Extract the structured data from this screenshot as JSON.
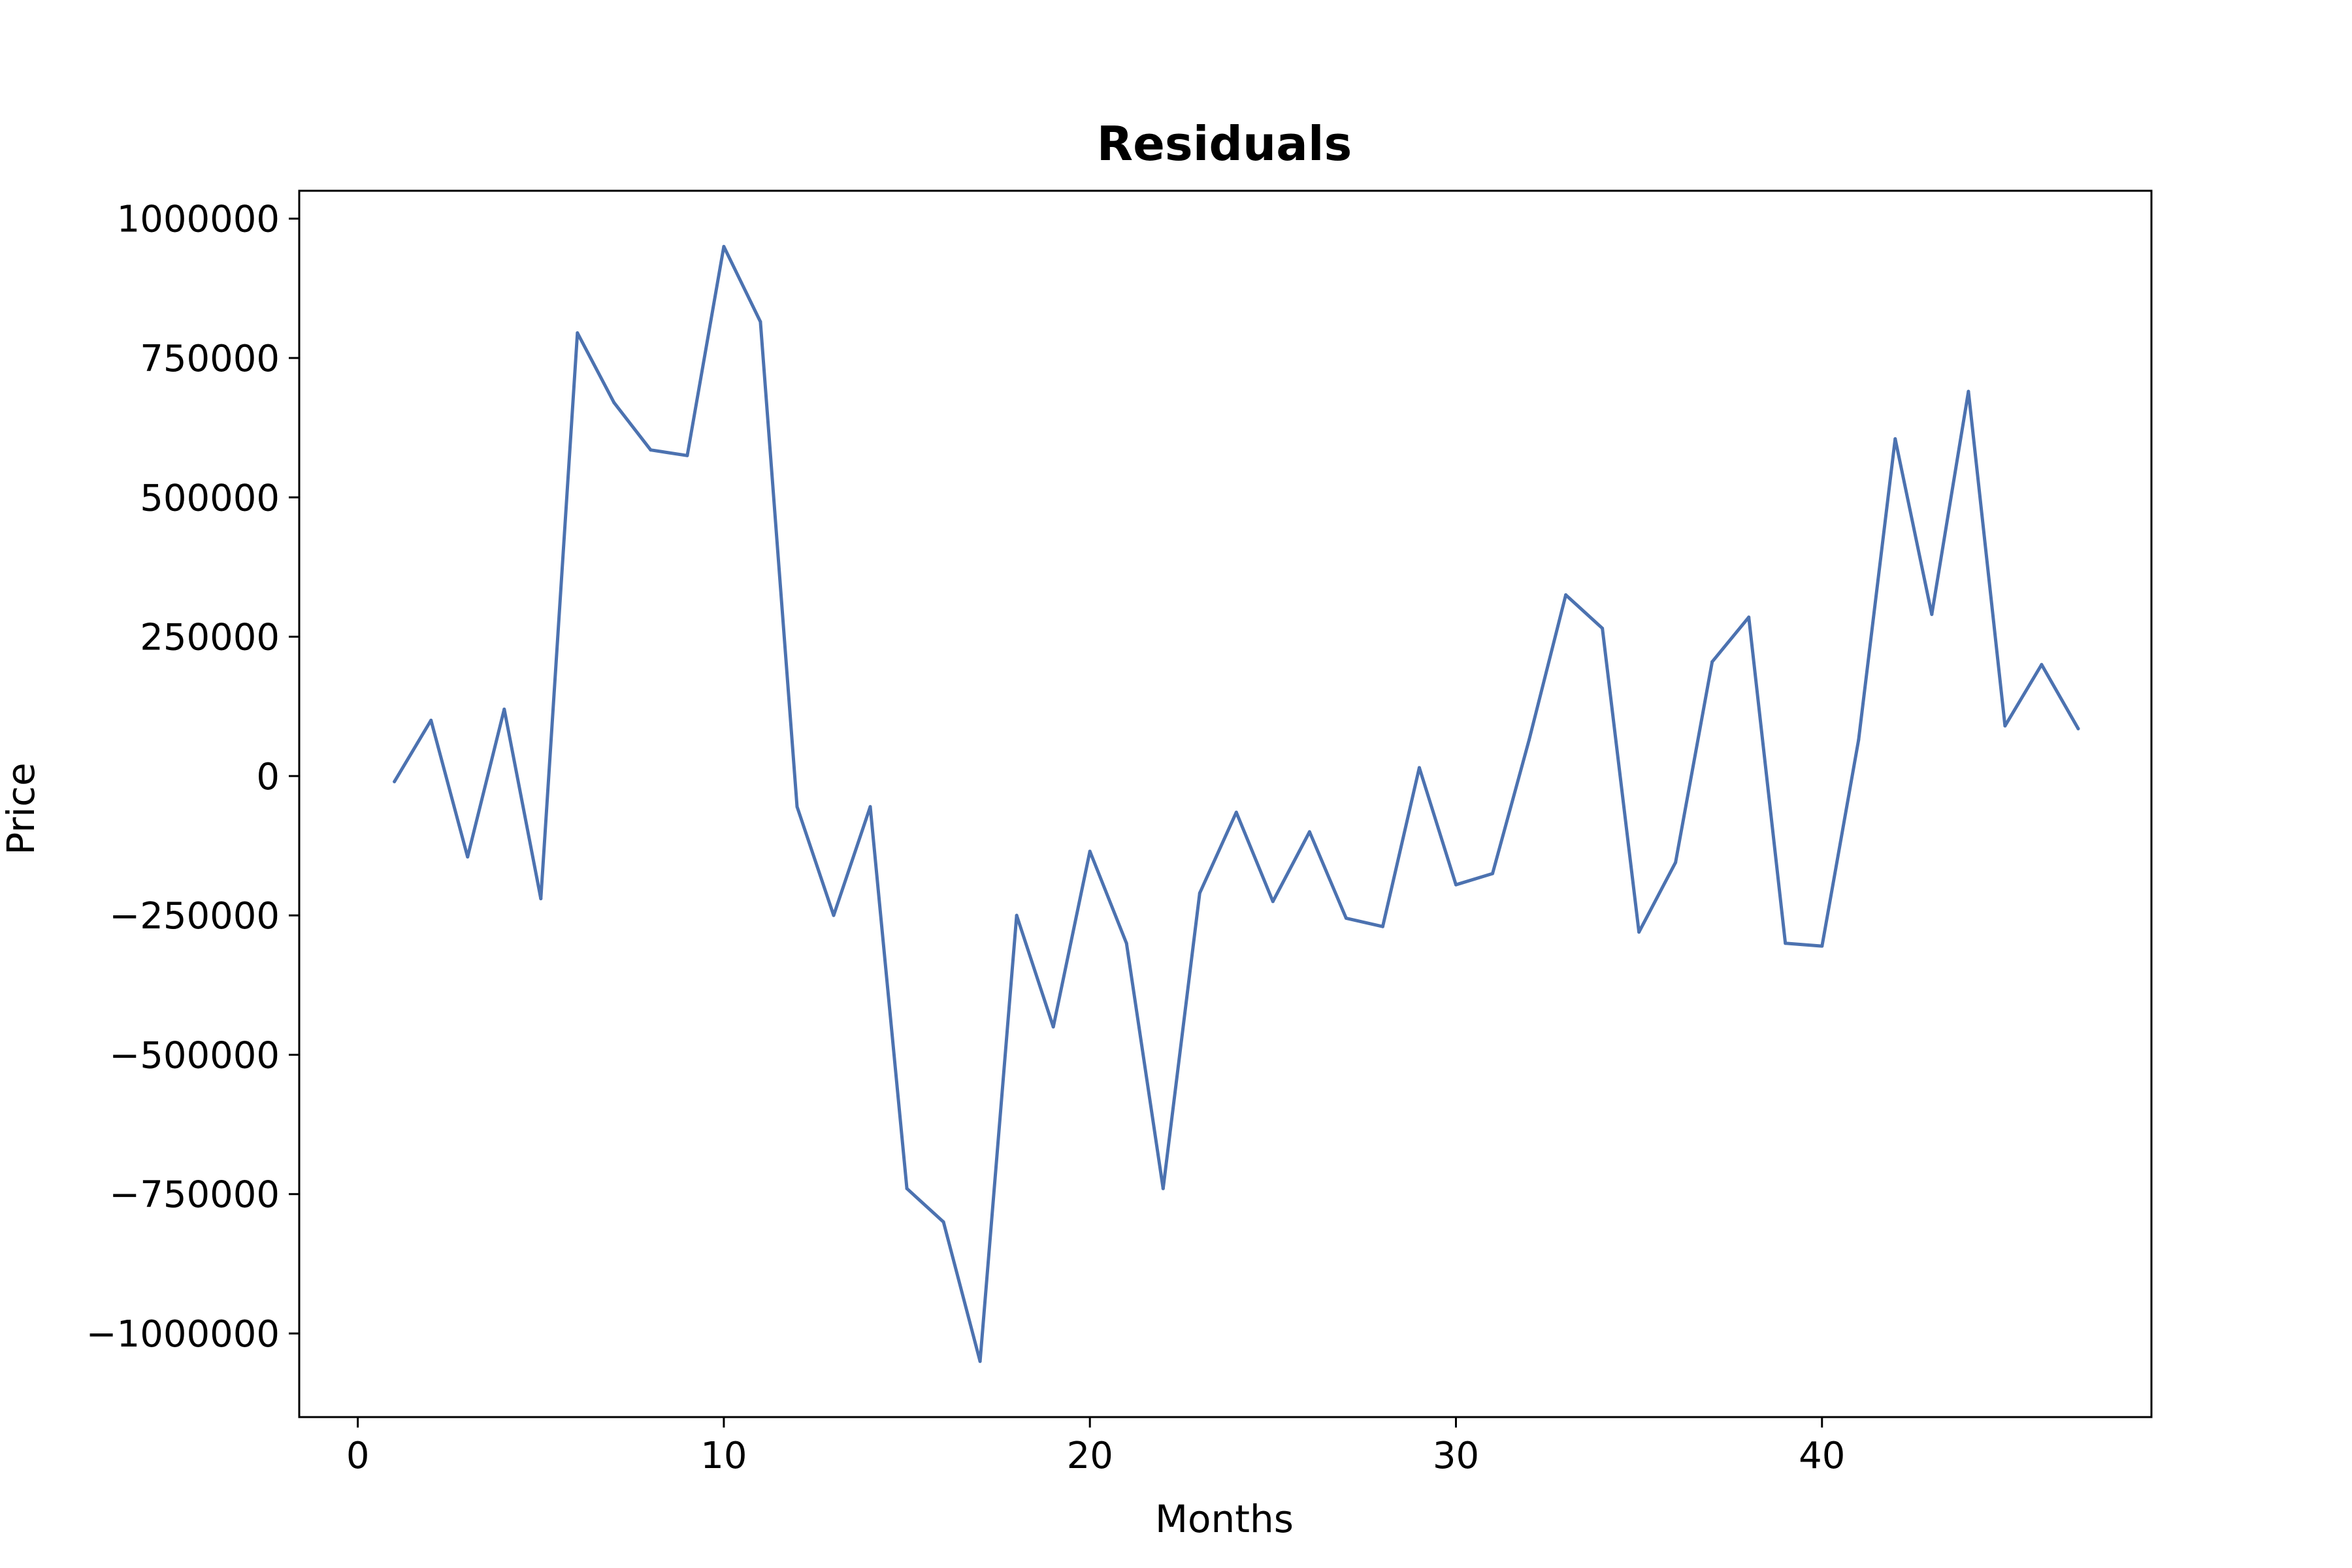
{
  "chart_data": {
    "type": "line",
    "title": "Residuals",
    "xlabel": "Months",
    "ylabel": "Price",
    "xlim": [
      -1.6,
      49
    ],
    "ylim": [
      -1150000,
      1050000
    ],
    "xticks": [
      0,
      10,
      20,
      30,
      40
    ],
    "xtick_labels": [
      "0",
      "10",
      "20",
      "30",
      "40"
    ],
    "yticks": [
      1000000,
      750000,
      500000,
      250000,
      0,
      -250000,
      -500000,
      -750000,
      -1000000
    ],
    "ytick_labels": [
      "1000000",
      "750000",
      "500000",
      "250000",
      "0",
      "−250000",
      "−500000",
      "−750000",
      "−1000000"
    ],
    "grid": false,
    "line_color": "#4c72b0",
    "series": [
      {
        "x": [
          1,
          2,
          3,
          4,
          5,
          6,
          7,
          8,
          9,
          10,
          11,
          12,
          13,
          14,
          15,
          16,
          17,
          18,
          19,
          20,
          21,
          22,
          23,
          24,
          25,
          26,
          27,
          28,
          29,
          30,
          31,
          32,
          33,
          34,
          35,
          36,
          37,
          38,
          39,
          40,
          41,
          42,
          43,
          44,
          45,
          46,
          47
        ],
        "values": [
          -10000,
          100000,
          -145000,
          120000,
          -220000,
          795000,
          670000,
          585000,
          575000,
          950000,
          815000,
          -55000,
          -250000,
          -55000,
          -740000,
          -800000,
          -1050000,
          -250000,
          -450000,
          -135000,
          -300000,
          -740000,
          -210000,
          -65000,
          -225000,
          -100000,
          -255000,
          -270000,
          15000,
          -195000,
          -175000,
          65000,
          325000,
          265000,
          -280000,
          -155000,
          205000,
          285000,
          -300000,
          -305000,
          65000,
          605000,
          290000,
          690000,
          90000,
          200000,
          85000
        ]
      }
    ]
  }
}
